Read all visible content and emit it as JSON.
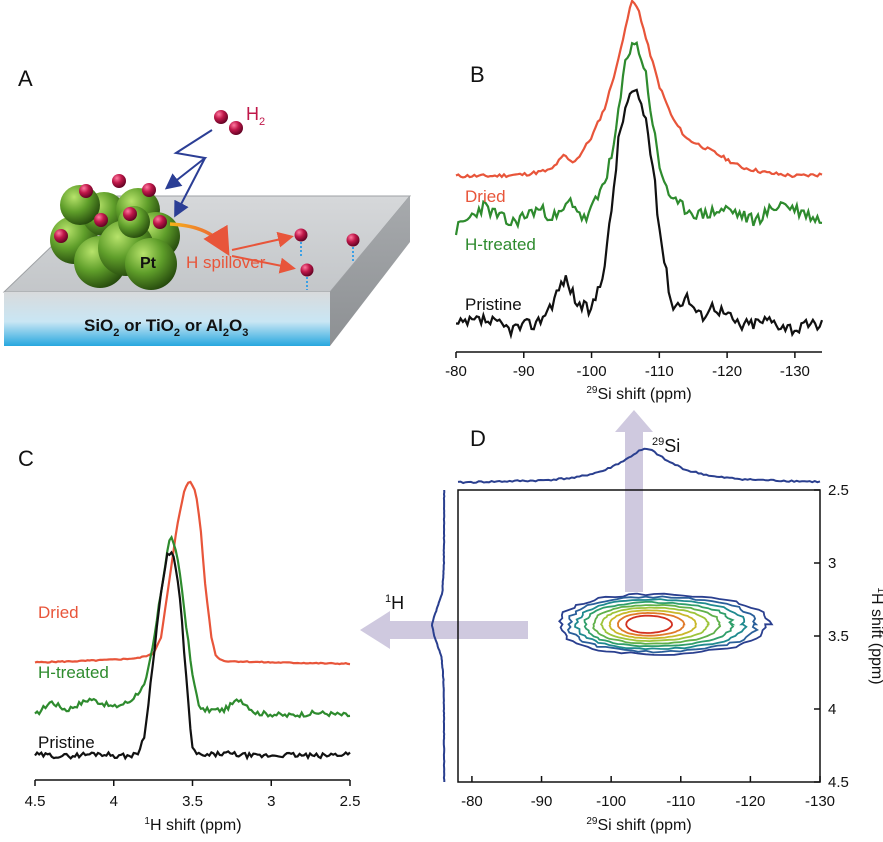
{
  "panels": {
    "a": {
      "label": "A",
      "h2": "H",
      "h2_sub": "2",
      "pt": "Pt",
      "spillover": "H spillover",
      "substrate": {
        "p1": "SiO",
        "s1": "2",
        "p2": " or TiO",
        "s2": "2",
        "p3": " or Al",
        "s3": "2",
        "p4": "O",
        "s4": "3"
      }
    },
    "b": {
      "label": "B"
    },
    "c": {
      "label": "C"
    },
    "d": {
      "label": "D",
      "proj_si": "Si",
      "proj_si_sup": "29",
      "proj_h": "H",
      "proj_h_sup": "1"
    }
  },
  "colors": {
    "dried": "#e8553a",
    "htreated": "#2e8b2e",
    "pristine": "#111111",
    "proj": "#2a3f8f",
    "arrow": "#cfc9df"
  },
  "chart_data": [
    {
      "type": "line",
      "panel": "B",
      "xlabel_sup": "29",
      "xlabel": "Si shift (ppm)",
      "xlim": [
        -80,
        -134
      ],
      "xticks": [
        -80,
        -90,
        -100,
        -110,
        -120,
        -130
      ],
      "series": [
        {
          "name": "Dried",
          "color": "#e8553a",
          "x": [
            -80,
            -85,
            -90,
            -94,
            -96,
            -97,
            -98,
            -100,
            -102,
            -104,
            -105,
            -106,
            -107,
            -108,
            -110,
            -112,
            -114,
            -118,
            -122,
            -126,
            -130,
            -134
          ],
          "y": [
            5.7,
            5.7,
            5.75,
            5.9,
            6.4,
            6.15,
            6.3,
            7.0,
            8.0,
            9.6,
            10.7,
            11.55,
            11.2,
            10.3,
            8.7,
            7.6,
            6.95,
            6.5,
            6.0,
            5.8,
            5.7,
            5.75
          ]
        },
        {
          "name": "H-treated",
          "color": "#2e8b2e",
          "x": [
            -80,
            -84,
            -88,
            -92,
            -95,
            -97,
            -99,
            -101,
            -103,
            -104,
            -105,
            -106,
            -107,
            -108,
            -109,
            -110,
            -112,
            -116,
            -120,
            -124,
            -128,
            -134
          ],
          "y": [
            3.9,
            4.7,
            4.1,
            4.6,
            4.3,
            4.9,
            4.2,
            5.0,
            6.3,
            7.8,
            9.5,
            10.2,
            9.9,
            9.1,
            7.5,
            6.0,
            4.8,
            4.4,
            4.6,
            4.2,
            4.8,
            4.2
          ]
        },
        {
          "name": "Pristine",
          "color": "#111111",
          "x": [
            -80,
            -84,
            -88,
            -92,
            -94,
            -96,
            -97,
            -98,
            -100,
            -102,
            -103,
            -104,
            -105,
            -106,
            -107,
            -108,
            -109,
            -110,
            -111,
            -112,
            -114,
            -116,
            -118,
            -122,
            -126,
            -130,
            -134
          ],
          "y": [
            0.7,
            0.9,
            0.6,
            0.8,
            1.4,
            2.3,
            1.9,
            1.4,
            1.2,
            2.8,
            4.7,
            6.9,
            8.0,
            8.5,
            8.3,
            7.6,
            6.1,
            4.0,
            2.5,
            1.3,
            1.7,
            1.0,
            1.4,
            0.7,
            0.9,
            0.6,
            0.8
          ]
        }
      ]
    },
    {
      "type": "line",
      "panel": "C",
      "xlabel_sup": "1",
      "xlabel": "H shift (ppm)",
      "xlim": [
        4.5,
        2.5
      ],
      "xticks": [
        4.5,
        4,
        3.5,
        3,
        2.5
      ],
      "series": [
        {
          "name": "Dried",
          "color": "#e8553a",
          "x": [
            4.5,
            4.2,
            4.0,
            3.85,
            3.75,
            3.7,
            3.65,
            3.6,
            3.55,
            3.52,
            3.48,
            3.45,
            3.42,
            3.38,
            3.35,
            3.3,
            3.0,
            2.5
          ],
          "y": [
            3.7,
            3.75,
            3.8,
            3.85,
            4.0,
            4.6,
            6.5,
            8.5,
            9.9,
            10.2,
            9.8,
            8.6,
            6.5,
            4.6,
            3.9,
            3.75,
            3.7,
            3.65
          ]
        },
        {
          "name": "H-treated",
          "color": "#2e8b2e",
          "x": [
            4.5,
            4.4,
            4.3,
            4.15,
            4.0,
            3.9,
            3.8,
            3.75,
            3.7,
            3.66,
            3.64,
            3.62,
            3.58,
            3.55,
            3.52,
            3.5,
            3.45,
            3.3,
            3.2,
            3.1,
            2.9,
            2.7,
            2.5
          ],
          "y": [
            1.8,
            2.3,
            2.0,
            2.4,
            2.1,
            2.3,
            2.9,
            4.3,
            6.2,
            7.7,
            8.2,
            8.0,
            6.9,
            5.5,
            4.1,
            3.2,
            2.0,
            2.0,
            2.4,
            1.9,
            1.8,
            1.9,
            1.8
          ]
        },
        {
          "name": "Pristine",
          "color": "#111111",
          "x": [
            4.5,
            4.3,
            4.1,
            3.95,
            3.85,
            3.8,
            3.75,
            3.7,
            3.66,
            3.63,
            3.6,
            3.57,
            3.55,
            3.52,
            3.5,
            3.45,
            3.3,
            3.1,
            2.9,
            2.7,
            2.5
          ],
          "y": [
            0.4,
            0.35,
            0.45,
            0.35,
            0.4,
            1.2,
            3.8,
            6.2,
            7.5,
            7.6,
            7.0,
            5.4,
            3.8,
            1.8,
            0.6,
            0.35,
            0.45,
            0.35,
            0.4,
            0.35,
            0.45
          ]
        }
      ]
    },
    {
      "type": "heatmap",
      "panel": "D",
      "xlabel_sup": "29",
      "xlabel": "Si shift (ppm)",
      "ylabel_sup": "1",
      "ylabel": "H shift (ppm)",
      "xlim": [
        -78,
        -130
      ],
      "ylim": [
        2.5,
        4.5
      ],
      "xticks": [
        -80,
        -90,
        -100,
        -110,
        -120,
        -130
      ],
      "yticks": [
        2.5,
        3,
        3.5,
        4,
        4.5
      ],
      "peak": {
        "x": -105,
        "y": 3.42
      },
      "contour_levels": 9,
      "si_projection": {
        "x": [
          -78,
          -90,
          -95,
          -99,
          -102,
          -104,
          -105,
          -106,
          -108,
          -111,
          -115,
          -120,
          -130
        ],
        "y": [
          0.5,
          0.8,
          1.2,
          2.2,
          3.7,
          5.0,
          5.3,
          5.0,
          3.6,
          2.2,
          1.3,
          0.9,
          0.6
        ]
      },
      "h_projection": {
        "y": [
          2.5,
          3.0,
          3.2,
          3.35,
          3.42,
          3.5,
          3.65,
          3.8,
          4.0,
          4.5
        ],
        "v": [
          0.4,
          0.5,
          1.2,
          4.5,
          6.0,
          4.8,
          1.5,
          0.7,
          0.5,
          0.4
        ]
      }
    }
  ]
}
